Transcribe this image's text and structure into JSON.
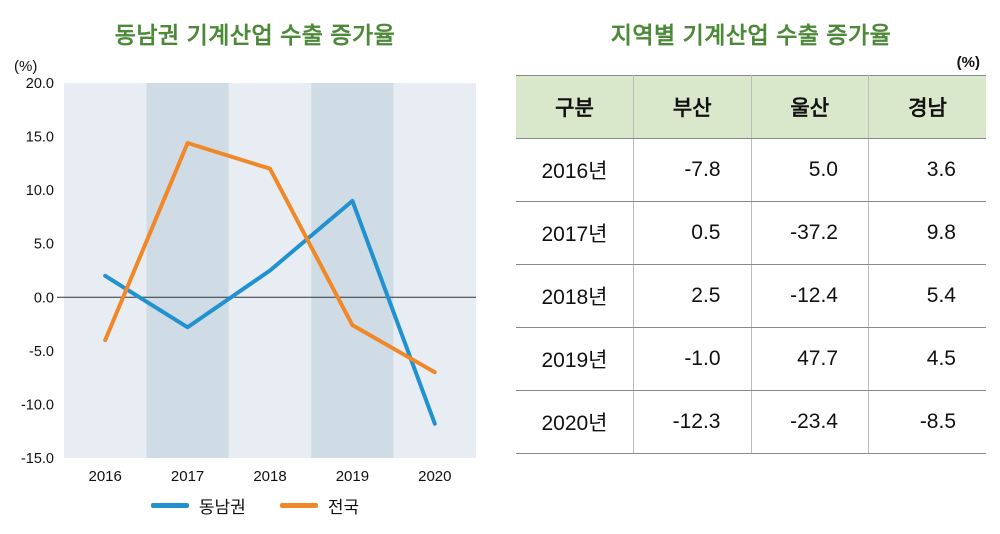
{
  "left": {
    "title": "동남권 기계산업 수출 증가율",
    "unit_label": "(%)"
  },
  "chart_data": {
    "type": "line",
    "title": "동남권 기계산업 수출 증가율",
    "categories": [
      "2016",
      "2017",
      "2018",
      "2019",
      "2020"
    ],
    "series": [
      {
        "name": "동남권",
        "color": "#2191cf",
        "values": [
          2.0,
          -2.8,
          2.5,
          9.0,
          -11.8
        ]
      },
      {
        "name": "전국",
        "color": "#f0882a",
        "values": [
          -4.0,
          14.4,
          12.0,
          -2.6,
          -7.0
        ]
      }
    ],
    "ylim": [
      -15,
      20
    ],
    "ytick_step": 5,
    "ytick_labels": [
      "20.0",
      "15.0",
      "10.0",
      "5.0",
      "0.0",
      "-5.0",
      "-10.0",
      "-15.0"
    ],
    "ylabel": "(%)",
    "grid": false,
    "legend_position": "bottom",
    "band_colors": {
      "light": "#e7edf2",
      "dark": "#cfdce5"
    },
    "zero_line_color": "#333333"
  },
  "right": {
    "title": "지역별 기계산업 수출 증가율",
    "unit_label": "(%)",
    "table": {
      "headers": [
        "구분",
        "부산",
        "울산",
        "경남"
      ],
      "rows": [
        [
          "2016년",
          "-7.8",
          "5.0",
          "3.6"
        ],
        [
          "2017년",
          "0.5",
          "-37.2",
          "9.8"
        ],
        [
          "2018년",
          "2.5",
          "-12.4",
          "5.4"
        ],
        [
          "2019년",
          "-1.0",
          "47.7",
          "4.5"
        ],
        [
          "2020년",
          "-12.3",
          "-23.4",
          "-8.5"
        ]
      ]
    }
  }
}
